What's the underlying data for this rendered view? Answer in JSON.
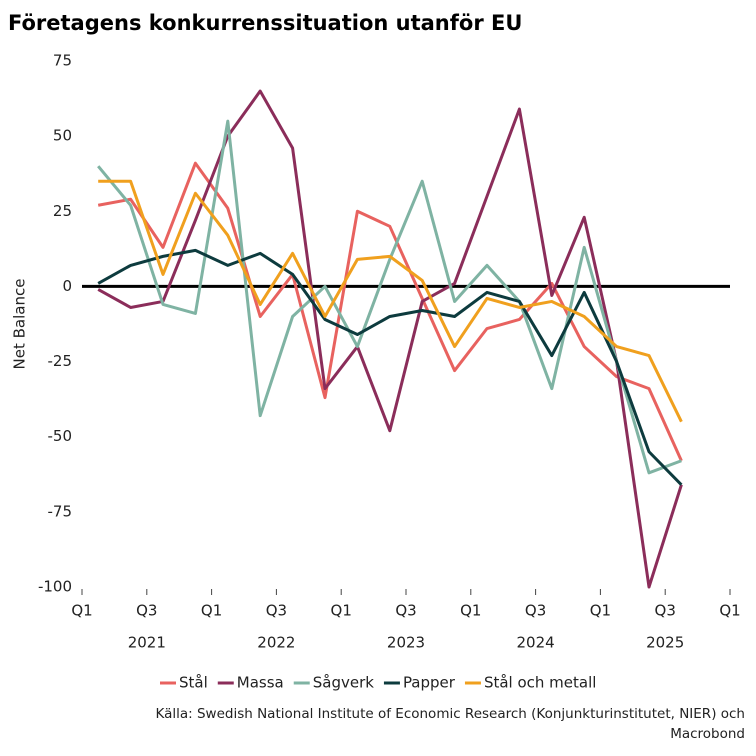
{
  "chart_data": {
    "type": "line",
    "title": "Företagens konkurrenssituation utanför EU",
    "y_label": "Net Balance",
    "source": [
      "Källa: Swedish National Institute of Economic Research (Konjunkturinstitutet, NIER) och",
      "Macrobond"
    ],
    "x": [
      2021.125,
      2021.375,
      2021.625,
      2021.875,
      2022.125,
      2022.375,
      2022.625,
      2022.875,
      2023.125,
      2023.375,
      2023.625,
      2023.875,
      2024.125,
      2024.375,
      2024.625,
      2024.875,
      2025.125,
      2025.375,
      2025.625
    ],
    "xlim": [
      2021,
      2026
    ],
    "xticks": [
      {
        "value": 2021,
        "label": "Q1"
      },
      {
        "value": 2021.5,
        "label": "Q3"
      },
      {
        "value": 2022,
        "label": "Q1"
      },
      {
        "value": 2022.5,
        "label": "Q3"
      },
      {
        "value": 2023,
        "label": "Q1"
      },
      {
        "value": 2023.5,
        "label": "Q3"
      },
      {
        "value": 2024,
        "label": "Q1"
      },
      {
        "value": 2024.5,
        "label": "Q3"
      },
      {
        "value": 2025,
        "label": "Q1"
      },
      {
        "value": 2025.5,
        "label": "Q3"
      },
      {
        "value": 2026,
        "label": "Q1"
      }
    ],
    "year_labels": [
      {
        "value": 2021.5,
        "label": "2021"
      },
      {
        "value": 2022.5,
        "label": "2022"
      },
      {
        "value": 2023.5,
        "label": "2023"
      },
      {
        "value": 2024.5,
        "label": "2024"
      },
      {
        "value": 2025.5,
        "label": "2025"
      }
    ],
    "ylim": [
      -100,
      75
    ],
    "yticks": [
      {
        "value": -100,
        "label": "-100"
      },
      {
        "value": -75,
        "label": "-75"
      },
      {
        "value": -50,
        "label": "-50"
      },
      {
        "value": -25,
        "label": "-25"
      },
      0,
      25,
      50,
      75
    ],
    "zero_line": true,
    "series": [
      {
        "name": "Stål",
        "color": "#e8625f",
        "values": [
          27,
          29,
          13,
          41,
          26,
          -10,
          4,
          -37,
          25,
          20,
          -4,
          -28,
          -14,
          -11,
          1,
          -20,
          -30,
          -34,
          -58
        ]
      },
      {
        "name": "Massa",
        "color": "#8b2d5a",
        "values": [
          -1,
          -7,
          -5,
          22,
          50,
          65,
          46,
          -34,
          -20,
          -48,
          -5,
          1,
          30,
          59,
          -3,
          23,
          -25,
          -100,
          -66
        ]
      },
      {
        "name": "Sågverk",
        "color": "#7fb3a3",
        "values": [
          40,
          27,
          -6,
          -9,
          55,
          -43,
          -10,
          0,
          -20,
          9,
          35,
          -5,
          7,
          -5,
          -34,
          13,
          -25,
          -62,
          -58
        ]
      },
      {
        "name": "Papper",
        "color": "#0d3b3e",
        "values": [
          1,
          7,
          10,
          12,
          7,
          11,
          4,
          -11,
          -16,
          -10,
          -8,
          -10,
          -2,
          -5,
          -23,
          -2,
          -25,
          -55,
          -66
        ]
      },
      {
        "name": "Stål och metall",
        "color": "#f0a01e",
        "values": [
          35,
          35,
          4,
          31,
          17,
          -6,
          11,
          -10,
          9,
          10,
          2,
          -20,
          -4,
          -7,
          -5,
          -10,
          -20,
          -23,
          -45
        ]
      }
    ]
  }
}
